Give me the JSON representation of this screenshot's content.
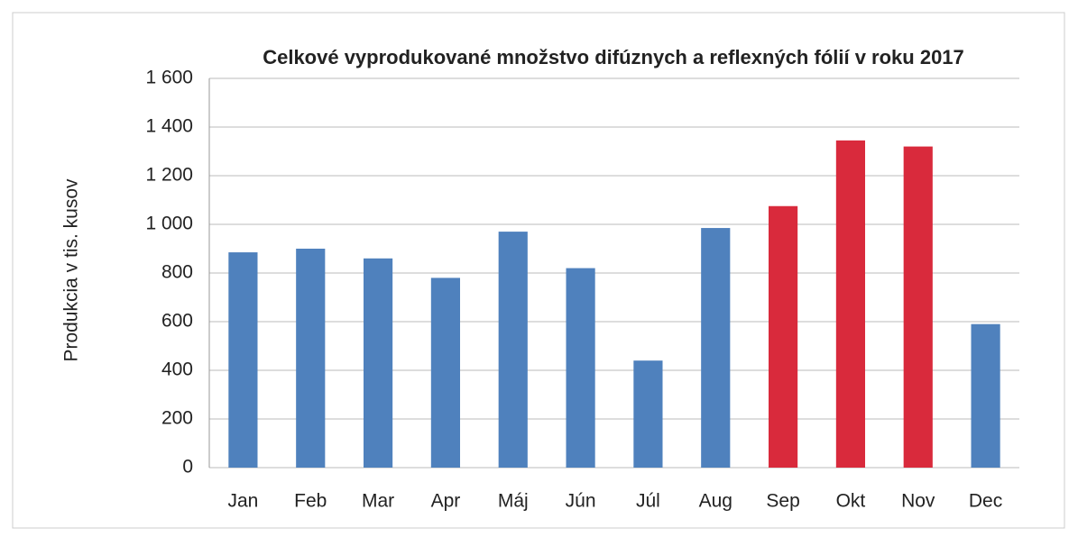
{
  "chart_data": {
    "type": "bar",
    "title": "Celkové vyprodukované množstvo difúznych a reflexných fólií v roku 2017",
    "y_label": "Produkcia v tis. kusov",
    "categories": [
      "Jan",
      "Feb",
      "Mar",
      "Apr",
      "Máj",
      "Jún",
      "Júl",
      "Aug",
      "Sep",
      "Okt",
      "Nov",
      "Dec"
    ],
    "values": [
      885,
      900,
      860,
      780,
      970,
      820,
      440,
      985,
      1075,
      1345,
      1320,
      590
    ],
    "colors": [
      "#4f81bd",
      "#4f81bd",
      "#4f81bd",
      "#4f81bd",
      "#4f81bd",
      "#4f81bd",
      "#4f81bd",
      "#4f81bd",
      "#d92a3c",
      "#d92a3c",
      "#d92a3c",
      "#4f81bd"
    ],
    "ylim": [
      0,
      1600
    ],
    "yticks": [
      0,
      200,
      400,
      600,
      800,
      {
        "value": 1000,
        "label": "1 000"
      },
      {
        "value": 1200,
        "label": "1 200"
      },
      {
        "value": 1400,
        "label": "1 400"
      },
      {
        "value": 1600,
        "label": "1 600"
      }
    ],
    "grid": true
  }
}
